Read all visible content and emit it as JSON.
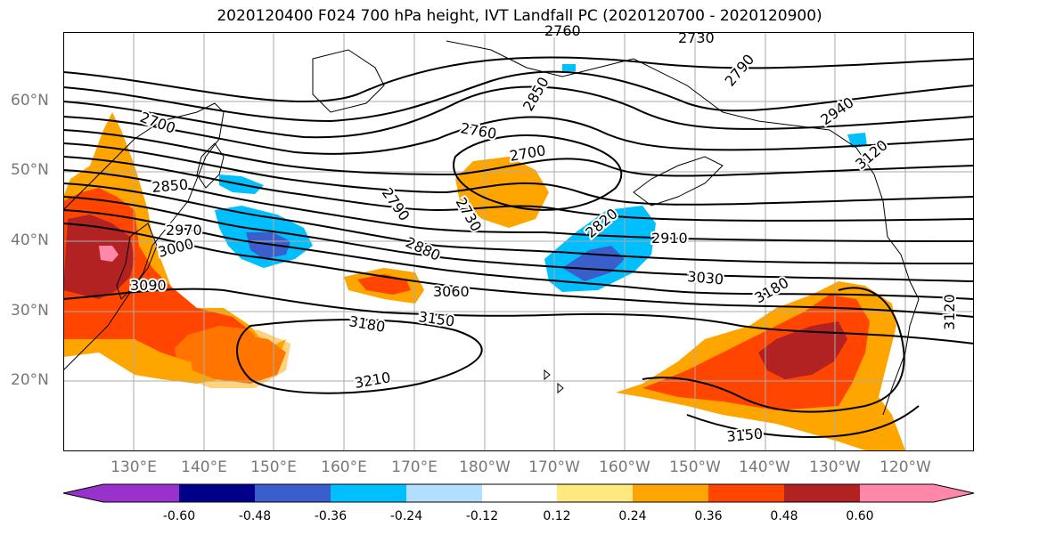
{
  "title": "2020120400 F024 700 hPa height, IVT Landfall PC (2020120700 - 2020120900)",
  "latitude_labels": [
    "60°N",
    "50°N",
    "40°N",
    "30°N",
    "20°N"
  ],
  "longitude_labels": [
    "130°E",
    "140°E",
    "150°E",
    "160°E",
    "170°E",
    "180°W",
    "170°W",
    "160°W",
    "150°W",
    "140°W",
    "130°W",
    "120°W"
  ],
  "contour_labels": [
    "2700",
    "2760",
    "2730",
    "2790",
    "2850",
    "2700",
    "2730",
    "2760",
    "2850",
    "2970",
    "3000",
    "3090",
    "2790",
    "2880",
    "3060",
    "2820",
    "2910",
    "3030",
    "3180",
    "3150",
    "3180",
    "3210",
    "3150",
    "2940",
    "3120",
    "3120"
  ],
  "colorbar": {
    "colors": [
      "#9932cc",
      "#00008b",
      "#3a5fcd",
      "#00bfff",
      "#b2dfff",
      "#ffffff",
      "#ffe97f",
      "#ffa500",
      "#ff4500",
      "#b22222",
      "#ff88aa"
    ],
    "tick_labels": [
      "-0.60",
      "-0.48",
      "-0.36",
      "-0.24",
      "-0.12",
      "0.12",
      "0.24",
      "0.36",
      "0.48",
      "0.60"
    ]
  },
  "colors": {
    "positive_high": "#b22222",
    "positive_mid": "#ff4500",
    "positive_low": "#ffa500",
    "negative_mid": "#00bfff",
    "negative_high": "#3a5fcd",
    "contour_line": "#000000",
    "grid": "#aaaaaa"
  }
}
